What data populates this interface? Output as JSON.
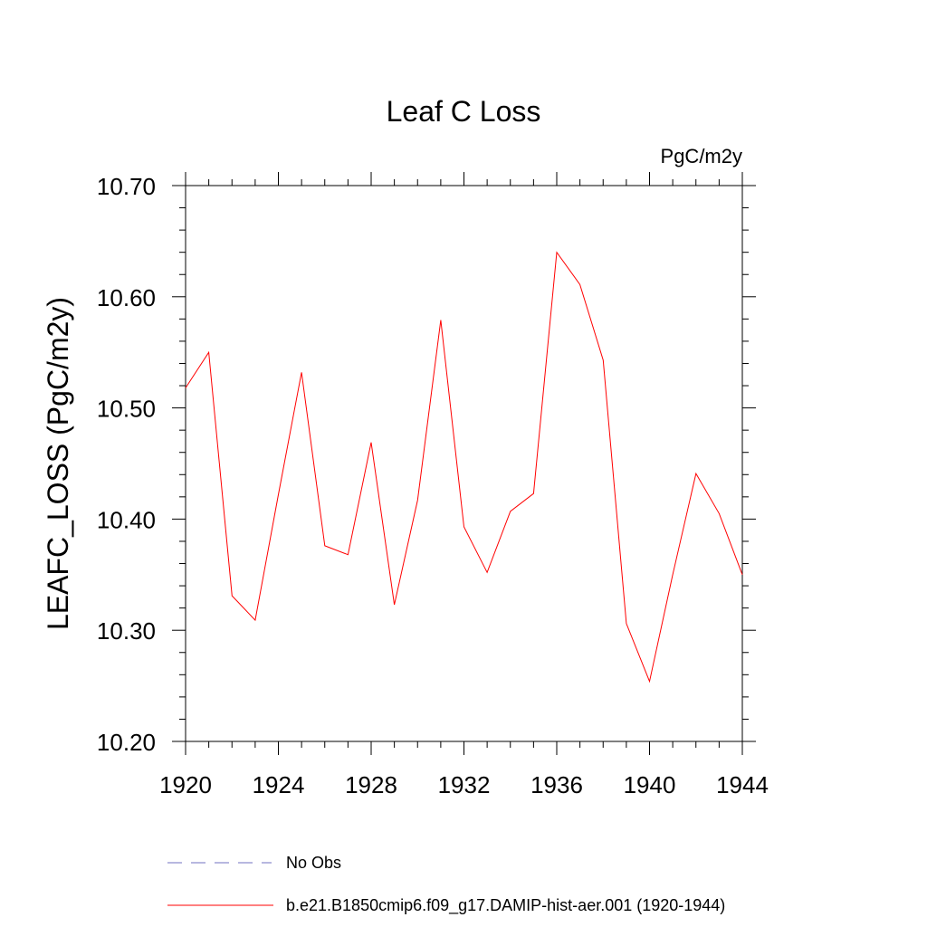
{
  "chart_data": {
    "type": "line",
    "title": "Leaf C Loss",
    "units_label": "PgC/m2y",
    "ylabel": "LEAFC_LOSS  (PgC/m2y)",
    "xlabel": "",
    "xlim": [
      1920,
      1944
    ],
    "ylim": [
      10.2,
      10.7
    ],
    "x_ticks": [
      "1920",
      "1924",
      "1928",
      "1932",
      "1936",
      "1940",
      "1944"
    ],
    "y_ticks": [
      "10.20",
      "10.30",
      "10.40",
      "10.50",
      "10.60",
      "10.70"
    ],
    "x": [
      1920,
      1921,
      1922,
      1923,
      1924,
      1925,
      1926,
      1927,
      1928,
      1929,
      1930,
      1931,
      1932,
      1933,
      1934,
      1935,
      1936,
      1937,
      1938,
      1939,
      1940,
      1941,
      1942,
      1943,
      1944
    ],
    "series": [
      {
        "name": "b.e21.B1850cmip6.f09_g17.DAMIP-hist-aer.001 (1920-1944)",
        "color": "#ff0000",
        "values": [
          10.518,
          10.55,
          10.331,
          10.309,
          10.422,
          10.532,
          10.376,
          10.368,
          10.469,
          10.323,
          10.417,
          10.579,
          10.393,
          10.352,
          10.407,
          10.423,
          10.64,
          10.611,
          10.543,
          10.306,
          10.254,
          10.35,
          10.441,
          10.405,
          10.35
        ]
      }
    ],
    "legend": {
      "placement": "bottom",
      "entries": [
        {
          "label": "No Obs",
          "color": "#7070c0",
          "style": "dashed"
        },
        {
          "label": "b.e21.B1850cmip6.f09_g17.DAMIP-hist-aer.001 (1920-1944)",
          "color": "#ff0000",
          "style": "solid"
        }
      ]
    },
    "grid": false
  }
}
